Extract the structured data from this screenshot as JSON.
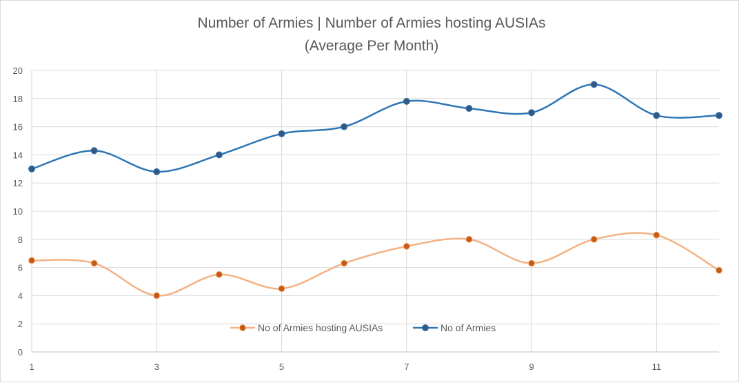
{
  "chart_data": {
    "type": "line",
    "title": "Number of Armies | Number of Armies hosting AUSIAs",
    "subtitle": "(Average Per Month)",
    "xlabel": "",
    "ylabel": "",
    "x": [
      1,
      2,
      3,
      4,
      5,
      6,
      7,
      8,
      9,
      10,
      11,
      12
    ],
    "x_tick_labels": [
      "1",
      "3",
      "5",
      "7",
      "9",
      "11"
    ],
    "y_tick_labels": [
      "0",
      "2",
      "4",
      "6",
      "8",
      "10",
      "12",
      "14",
      "16",
      "18",
      "20"
    ],
    "ylim": [
      0,
      20
    ],
    "grid": true,
    "legend_position": "bottom-inside",
    "smooth": true,
    "series": [
      {
        "name": "No of Armies hosting AUSIAs",
        "color": "#f4b183",
        "marker_color": "#c55a11",
        "values": [
          6.5,
          6.3,
          4.0,
          5.5,
          4.5,
          6.3,
          7.5,
          8.0,
          6.3,
          8.0,
          8.3,
          5.8
        ]
      },
      {
        "name": "No of Armies",
        "color": "#2e75b6",
        "marker_color": "#335980",
        "values": [
          13.0,
          14.3,
          12.8,
          14.0,
          15.5,
          16.0,
          17.8,
          17.3,
          17.0,
          19.0,
          16.8,
          16.8
        ]
      }
    ]
  }
}
